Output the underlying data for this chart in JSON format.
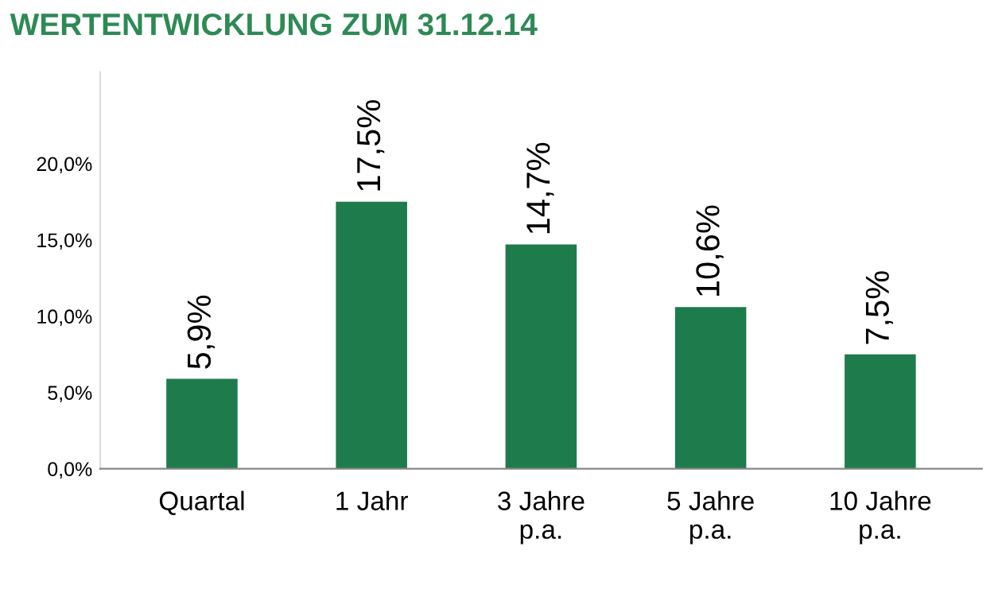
{
  "chart_data": {
    "type": "bar",
    "title": "WERTENTWICKLUNG ZUM 31.12.14",
    "categories": [
      "Quartal",
      "1 Jahr",
      "3 Jahre\np.a.",
      "5 Jahre\np.a.",
      "10 Jahre\np.a."
    ],
    "values": [
      5.9,
      17.5,
      14.7,
      10.6,
      7.5
    ],
    "value_labels": [
      "5,9%",
      "17,5%",
      "14,7%",
      "10,6%",
      "7,5%"
    ],
    "color": "#1e7b4b",
    "ylim": [
      0,
      26
    ],
    "yticks": [
      {
        "value": 0,
        "label": "0,0%"
      },
      {
        "value": 5,
        "label": "5,0%"
      },
      {
        "value": 10,
        "label": "10,0%"
      },
      {
        "value": 15,
        "label": "15,0%"
      },
      {
        "value": 20,
        "label": "20,0%"
      }
    ],
    "grid": false,
    "legend": false
  }
}
